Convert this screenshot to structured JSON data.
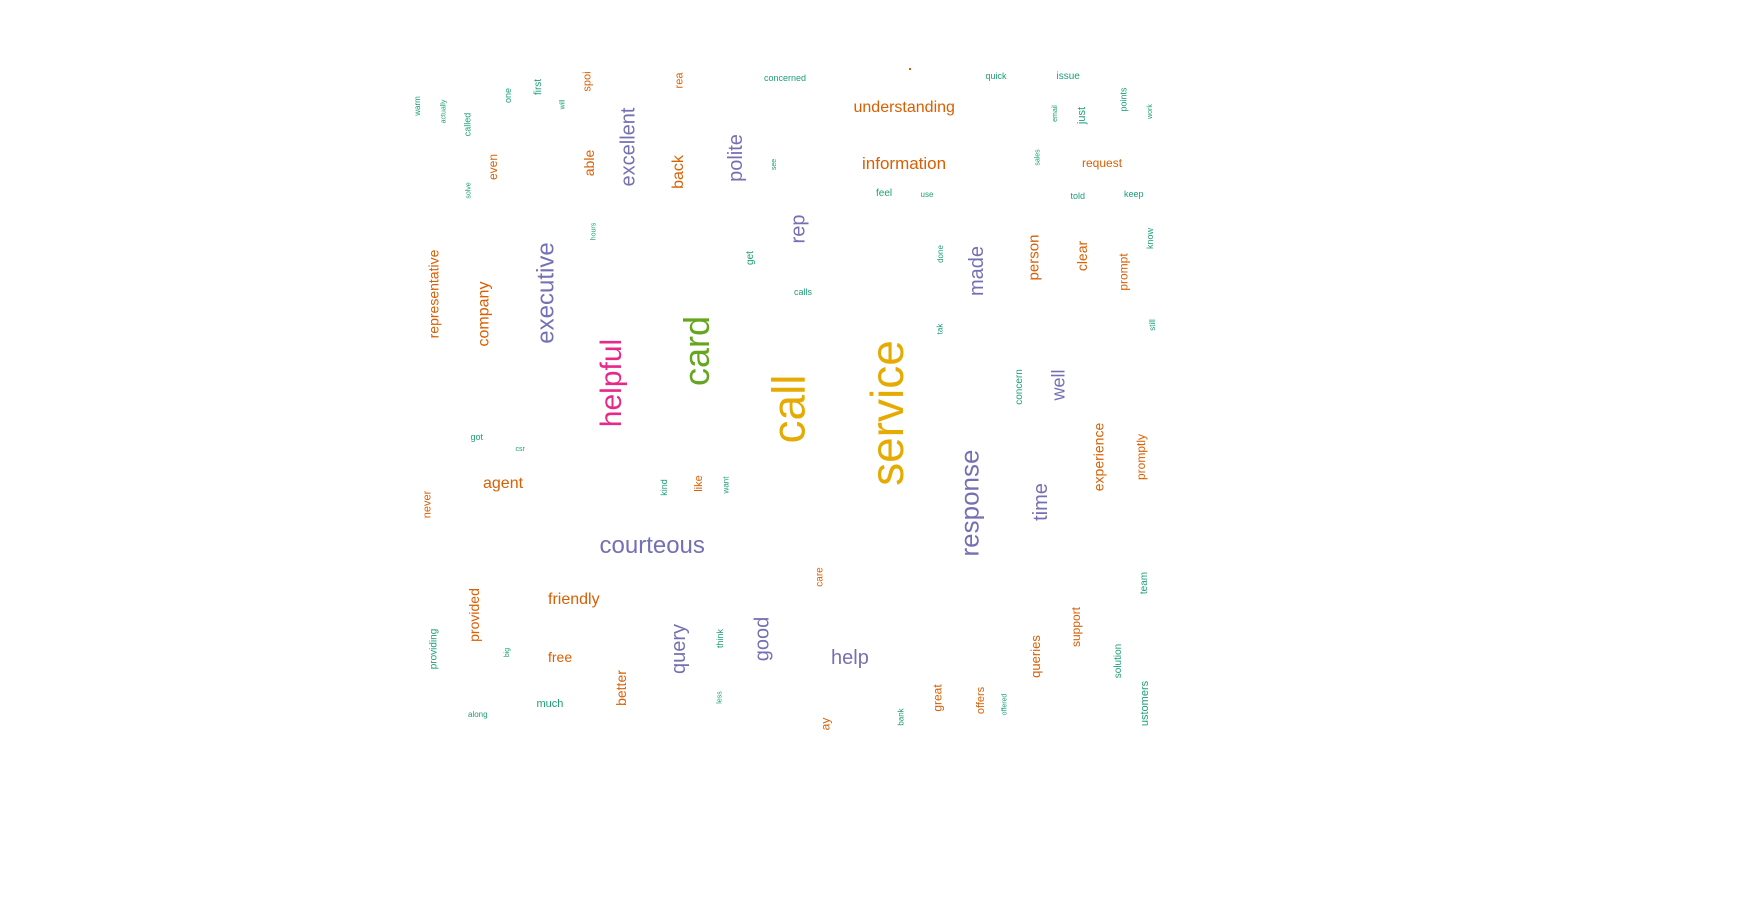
{
  "colors": {
    "teal": "#1b9e77",
    "orange": "#d95f02",
    "purple": "#7570b3",
    "pink": "#e7298a",
    "green": "#66a61e",
    "gold": "#e6ab02"
  },
  "words": [
    {
      "text": "service",
      "color": "gold"
    },
    {
      "text": "call",
      "color": "gold"
    },
    {
      "text": "card",
      "color": "green"
    },
    {
      "text": "helpful",
      "color": "pink"
    },
    {
      "text": "response",
      "color": "purple"
    },
    {
      "text": "courteous",
      "color": "purple"
    },
    {
      "text": "executive",
      "color": "purple"
    },
    {
      "text": "excellent",
      "color": "purple"
    },
    {
      "text": "polite",
      "color": "purple"
    },
    {
      "text": "rep",
      "color": "purple"
    },
    {
      "text": "made",
      "color": "purple"
    },
    {
      "text": "time",
      "color": "purple"
    },
    {
      "text": "well",
      "color": "purple"
    },
    {
      "text": "query",
      "color": "purple"
    },
    {
      "text": "good",
      "color": "purple"
    },
    {
      "text": "help",
      "color": "purple"
    },
    {
      "text": "understanding",
      "color": "orange"
    },
    {
      "text": "information",
      "color": "orange"
    },
    {
      "text": "representative",
      "color": "orange"
    },
    {
      "text": "company",
      "color": "orange"
    },
    {
      "text": "agent",
      "color": "orange"
    },
    {
      "text": "friendly",
      "color": "orange"
    },
    {
      "text": "free",
      "color": "orange"
    },
    {
      "text": "provided",
      "color": "orange"
    },
    {
      "text": "better",
      "color": "orange"
    },
    {
      "text": "able",
      "color": "orange"
    },
    {
      "text": "back",
      "color": "orange"
    },
    {
      "text": "even",
      "color": "orange"
    },
    {
      "text": "person",
      "color": "orange"
    },
    {
      "text": "clear",
      "color": "orange"
    },
    {
      "text": "prompt",
      "color": "orange"
    },
    {
      "text": "request",
      "color": "orange"
    },
    {
      "text": "experience",
      "color": "orange"
    },
    {
      "text": "promptly",
      "color": "orange"
    },
    {
      "text": "queries",
      "color": "orange"
    },
    {
      "text": "support",
      "color": "orange"
    },
    {
      "text": "great",
      "color": "orange"
    },
    {
      "text": "offers",
      "color": "orange"
    },
    {
      "text": "like",
      "color": "orange"
    },
    {
      "text": "care",
      "color": "orange"
    },
    {
      "text": "never",
      "color": "orange"
    },
    {
      "text": "spoi",
      "color": "orange"
    },
    {
      "text": "rea",
      "color": "orange"
    },
    {
      "text": "ay",
      "color": "orange"
    },
    {
      "text": "issue",
      "color": "teal"
    },
    {
      "text": "quick",
      "color": "teal"
    },
    {
      "text": "concerned",
      "color": "teal"
    },
    {
      "text": "first",
      "color": "teal"
    },
    {
      "text": "one",
      "color": "teal"
    },
    {
      "text": "called",
      "color": "teal"
    },
    {
      "text": "actually",
      "color": "teal"
    },
    {
      "text": "warm",
      "color": "teal"
    },
    {
      "text": "will",
      "color": "teal"
    },
    {
      "text": "solve",
      "color": "teal"
    },
    {
      "text": "hours",
      "color": "teal"
    },
    {
      "text": "see",
      "color": "teal"
    },
    {
      "text": "feel",
      "color": "teal"
    },
    {
      "text": "use",
      "color": "teal"
    },
    {
      "text": "get",
      "color": "teal"
    },
    {
      "text": "calls",
      "color": "teal"
    },
    {
      "text": "done",
      "color": "teal"
    },
    {
      "text": "tak",
      "color": "teal"
    },
    {
      "text": "email",
      "color": "teal"
    },
    {
      "text": "just",
      "color": "teal"
    },
    {
      "text": "points",
      "color": "teal"
    },
    {
      "text": "work",
      "color": "teal"
    },
    {
      "text": "sales",
      "color": "teal"
    },
    {
      "text": "told",
      "color": "teal"
    },
    {
      "text": "keep",
      "color": "teal"
    },
    {
      "text": "know",
      "color": "teal"
    },
    {
      "text": "still",
      "color": "teal"
    },
    {
      "text": "concern",
      "color": "teal"
    },
    {
      "text": "got",
      "color": "teal"
    },
    {
      "text": "csr",
      "color": "teal"
    },
    {
      "text": "kind",
      "color": "teal"
    },
    {
      "text": "want",
      "color": "teal"
    },
    {
      "text": "team",
      "color": "teal"
    },
    {
      "text": "solution",
      "color": "teal"
    },
    {
      "text": "ustomers",
      "color": "teal"
    },
    {
      "text": "providing",
      "color": "teal"
    },
    {
      "text": "big",
      "color": "teal"
    },
    {
      "text": "along",
      "color": "teal"
    },
    {
      "text": "much",
      "color": "teal"
    },
    {
      "text": "think",
      "color": "teal"
    },
    {
      "text": "less",
      "color": "teal"
    },
    {
      "text": "bank",
      "color": "teal"
    },
    {
      "text": "offered",
      "color": "teal"
    }
  ]
}
